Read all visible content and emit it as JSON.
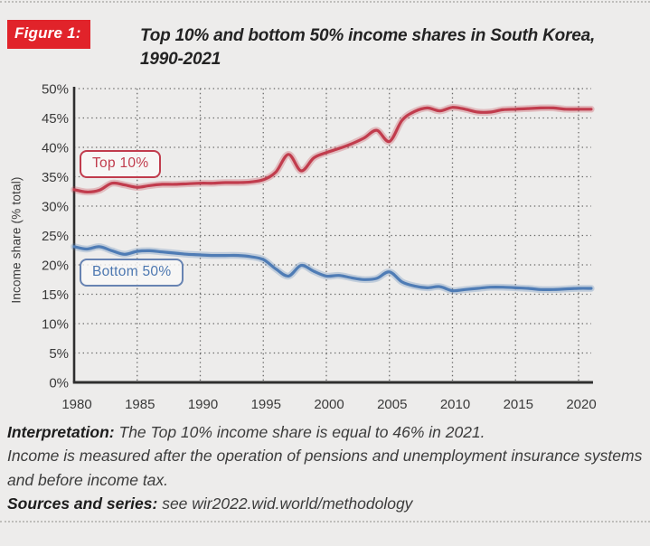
{
  "figure_label": "Figure 1:",
  "title": "Top 10% and bottom 50% income shares in South Korea,\n1990-2021",
  "colors": {
    "background": "#edeceb",
    "figure_label_bg": "#e1232a",
    "top10_line": "#c13c4d",
    "bottom50_line": "#4f7cb5",
    "grid_dots": "#4a4a4a",
    "axis": "#2f2f2f",
    "tick_text": "#3a3a3a"
  },
  "chart_data": {
    "type": "line",
    "title": "Top 10% and bottom 50% income shares in South Korea, 1990-2021",
    "xlabel": "",
    "ylabel": "Income share (% total)",
    "ylim": [
      0,
      50
    ],
    "xlim": [
      1980,
      2021
    ],
    "grid": "dotted",
    "legend_position": "inline-labels",
    "ytick_values": [
      0,
      5,
      10,
      15,
      20,
      25,
      30,
      35,
      40,
      45,
      50
    ],
    "ytick_labels": [
      "0%",
      "5%",
      "10%",
      "15%",
      "20%",
      "25%",
      "30%",
      "35%",
      "40%",
      "45%",
      "50%"
    ],
    "xtick_values": [
      1980,
      1985,
      1990,
      1995,
      2000,
      2005,
      2010,
      2015,
      2020
    ],
    "xtick_labels": [
      "1980",
      "1985",
      "1990",
      "1995",
      "2000",
      "2005",
      "2010",
      "2015",
      "2020"
    ],
    "x": [
      1980,
      1981,
      1982,
      1983,
      1984,
      1985,
      1986,
      1987,
      1988,
      1989,
      1990,
      1991,
      1992,
      1993,
      1994,
      1995,
      1996,
      1997,
      1998,
      1999,
      2000,
      2001,
      2002,
      2003,
      2004,
      2005,
      2006,
      2007,
      2008,
      2009,
      2010,
      2011,
      2012,
      2013,
      2014,
      2015,
      2016,
      2017,
      2018,
      2019,
      2020,
      2021
    ],
    "series": [
      {
        "name": "Top 10%",
        "color": "#c13c4d",
        "values": [
          32.8,
          32.4,
          32.7,
          33.9,
          33.6,
          33.2,
          33.5,
          33.7,
          33.7,
          33.8,
          33.9,
          33.9,
          34.0,
          34.0,
          34.1,
          34.5,
          35.8,
          38.8,
          36.0,
          38.2,
          39.1,
          39.8,
          40.6,
          41.6,
          42.9,
          41.0,
          44.6,
          46.1,
          46.7,
          46.2,
          46.8,
          46.5,
          46.0,
          46.0,
          46.4,
          46.5,
          46.6,
          46.7,
          46.7,
          46.5,
          46.5,
          46.5
        ]
      },
      {
        "name": "Bottom 50%",
        "color": "#4f7cb5",
        "values": [
          23.1,
          22.7,
          23.1,
          22.4,
          21.8,
          22.3,
          22.4,
          22.2,
          22.0,
          21.8,
          21.7,
          21.6,
          21.6,
          21.6,
          21.4,
          20.9,
          19.3,
          18.1,
          19.9,
          18.9,
          18.1,
          18.2,
          17.8,
          17.5,
          17.7,
          18.8,
          17.1,
          16.4,
          16.1,
          16.3,
          15.6,
          15.8,
          16.0,
          16.2,
          16.2,
          16.1,
          16.0,
          15.8,
          15.8,
          15.9,
          16.0,
          16.0
        ]
      }
    ]
  },
  "notes": {
    "interpretation_label": "Interpretation:",
    "interpretation_text": "The Top 10% income share is equal to 46% in 2021.\nIncome is measured after the operation of pensions and unemployment insurance systems and before income tax.",
    "sources_label": "Sources and series:",
    "sources_text": "see wir2022.wid.world/methodology"
  }
}
